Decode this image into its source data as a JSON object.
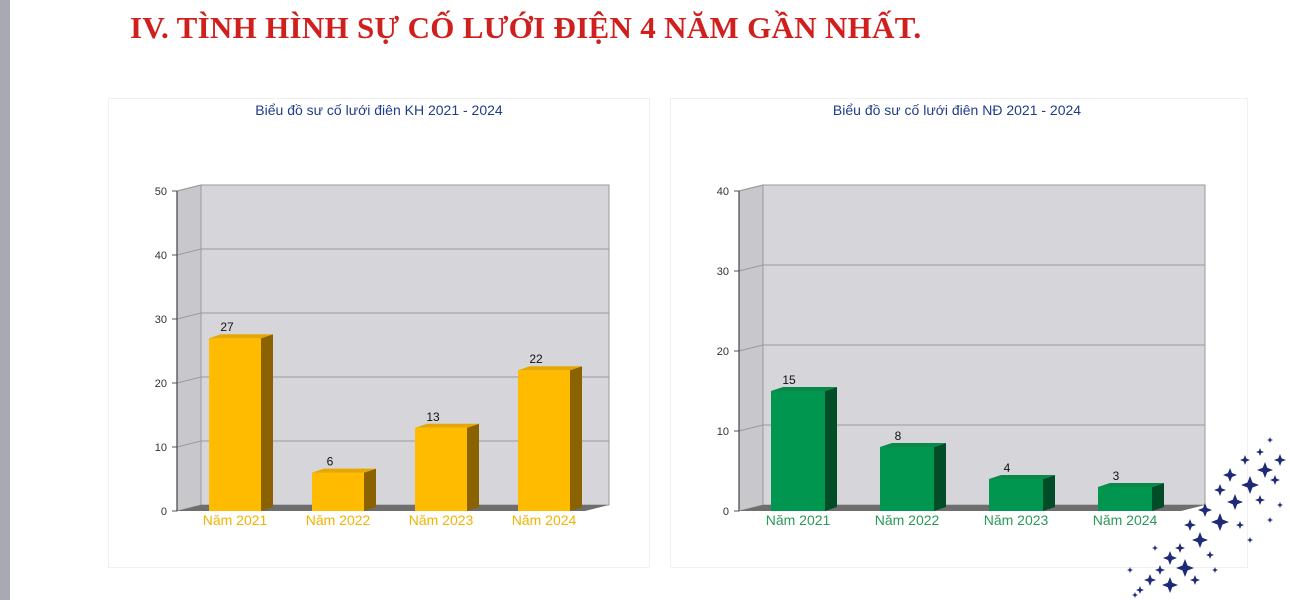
{
  "title": "IV. TÌNH HÌNH SỰ CỐ LƯỚI ĐIỆN 4 NĂM GẦN NHẤT.",
  "chart_data": [
    {
      "type": "bar",
      "title": "Biểu đồ sư cố lưới điên KH 2021 - 2024",
      "categories": [
        "Năm 2021",
        "Năm 2022",
        "Năm 2023",
        "Năm 2024"
      ],
      "values": [
        27,
        6,
        13,
        22
      ],
      "ylim": [
        0,
        50
      ],
      "yticks": [
        0,
        10,
        20,
        30,
        40,
        50
      ],
      "bar_color": "#ffbb00",
      "side_color": "#8a6300",
      "top_color": "#e6a800",
      "label_color": "#f2b400",
      "grid": true
    },
    {
      "type": "bar",
      "title": "Biểu đồ sư cố lưới điên NĐ 2021 - 2024",
      "categories": [
        "Năm 2021",
        "Năm 2022",
        "Năm 2023",
        "Năm 2024"
      ],
      "values": [
        15,
        8,
        4,
        3
      ],
      "ylim": [
        0,
        40
      ],
      "yticks": [
        0,
        10,
        20,
        30,
        40
      ],
      "bar_color": "#00964f",
      "side_color": "#004d28",
      "top_color": "#0a8a4a",
      "label_color": "#2a9a5a",
      "grid": true
    }
  ]
}
